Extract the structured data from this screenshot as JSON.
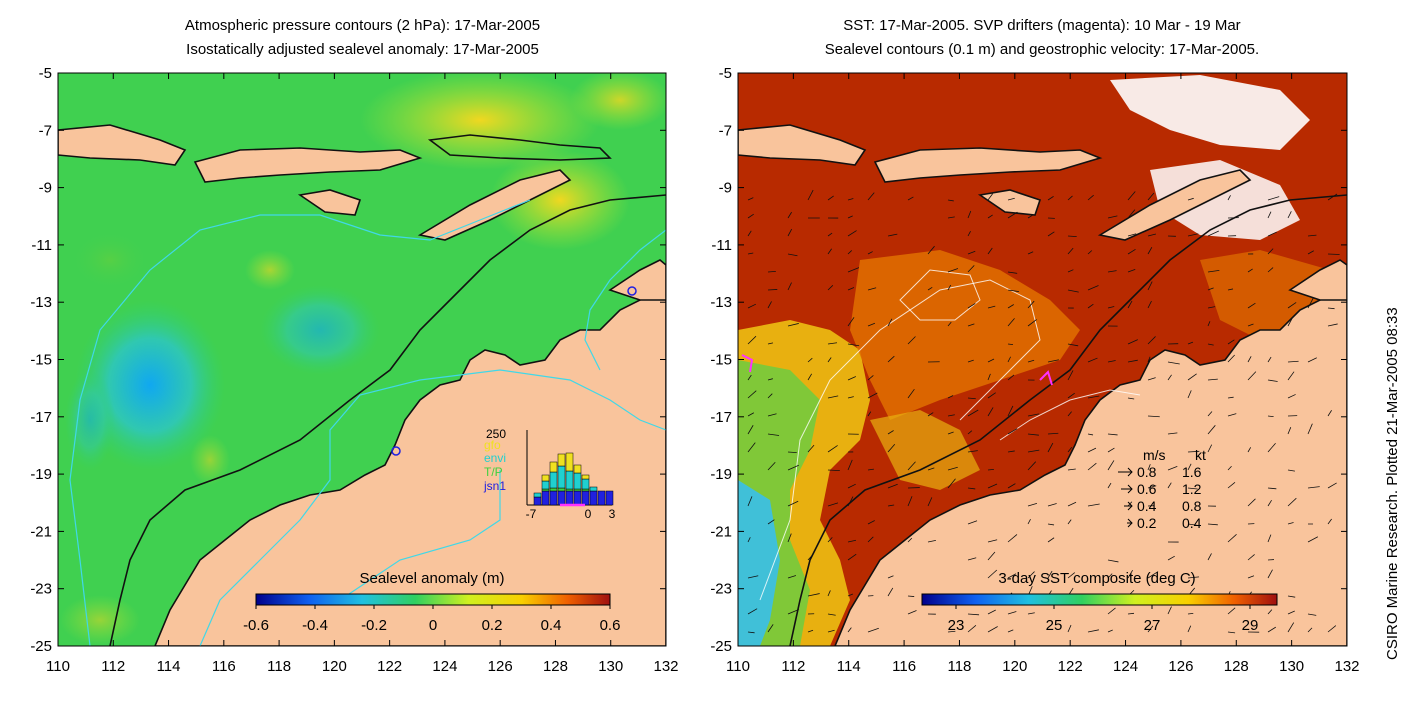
{
  "left_panel": {
    "title_line1": "Atmospheric pressure contours (2 hPa): 17-Mar-2005",
    "title_line2": "Isostatically adjusted sealevel anomaly: 17-Mar-2005",
    "colorbar": {
      "label": "Sealevel anomaly (m)",
      "ticks": [
        "-0.6",
        "-0.4",
        "-0.2",
        "0",
        "0.2",
        "0.4",
        "0.6"
      ]
    },
    "inset": {
      "ymax_label": "250",
      "x_labels": [
        "-7",
        "0",
        "3"
      ],
      "legend": [
        {
          "name": "gfo",
          "color": "#f0e020"
        },
        {
          "name": "envi",
          "color": "#20d0d0"
        },
        {
          "name": "T/P",
          "color": "#40d040"
        },
        {
          "name": "jsn1",
          "color": "#2020e0"
        }
      ]
    }
  },
  "right_panel": {
    "title_line1": "SST: 17-Mar-2005. SVP drifters (magenta): 10 Mar - 19 Mar",
    "title_line2": "Sealevel contours (0.1 m) and geostrophic velocity: 17-Mar-2005.",
    "colorbar": {
      "label": "3-day SST composite (deg C)",
      "ticks": [
        "23",
        "25",
        "27",
        "29"
      ]
    },
    "velocity_key": {
      "header_ms": "m/s",
      "header_kt": "kt",
      "rows": [
        {
          "ms": "0.8",
          "kt": "1.6"
        },
        {
          "ms": "0.6",
          "kt": "1.2"
        },
        {
          "ms": "0.4",
          "kt": "0.8"
        },
        {
          "ms": "0.2",
          "kt": "0.4"
        }
      ]
    }
  },
  "axes": {
    "lat_ticks": [
      "-5",
      "-7",
      "-9",
      "-11",
      "-13",
      "-15",
      "-17",
      "-19",
      "-21",
      "-23",
      "-25"
    ],
    "lon_ticks": [
      "110",
      "112",
      "114",
      "116",
      "118",
      "120",
      "122",
      "124",
      "126",
      "128",
      "130",
      "132"
    ]
  },
  "credit": "CSIRO Marine Research. Plotted 21-Mar-2005 08:33",
  "colors": {
    "land": "#f9c49c",
    "coast": "#111111",
    "contour": "#40d8e8",
    "sst_warm": "#b82a00"
  }
}
